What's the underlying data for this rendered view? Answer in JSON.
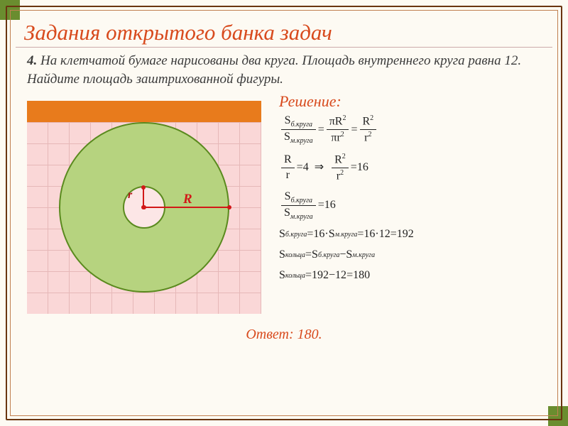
{
  "title": "Задания открытого банка задач",
  "problem": {
    "number": "4.",
    "text": "На клетчатой бумаге нарисованы два круга. Площадь внутреннего круга равна 12. Найдите площадь заштрихованной фигуры."
  },
  "solution_label": "Решение:",
  "answer_label": "Ответ:",
  "answer_value": "180.",
  "figure": {
    "grid_cell": 30,
    "grid_color": "#e6b8b8",
    "grid_fill": "#fad7d7",
    "top_row_color": "#e87b1c",
    "big_circle": {
      "radius_cells": 4,
      "fill": "#b6d37f",
      "stroke": "#5a8a1e"
    },
    "small_circle": {
      "radius_cells": 1,
      "fill": "#fce6e6",
      "stroke": "#5a8a1e"
    },
    "R_label": "R",
    "r_label": "r",
    "radius_color": "#d21818"
  },
  "formulas": {
    "line1": {
      "lhs_n": "S",
      "lhs_n_sub": "б.круга",
      "lhs_d": "S",
      "lhs_d_sub": "м.круга",
      "mid_n": "πR",
      "mid_d": "πr",
      "rhs_n": "R",
      "rhs_d": "r",
      "sup": "2"
    },
    "line2": {
      "lhs_n": "R",
      "lhs_d": "r",
      "eq1": "4",
      "rhs_n": "R",
      "rhs_d": "r",
      "sup": "2",
      "eq2": "16",
      "arrow": "⇒"
    },
    "line3": {
      "n": "S",
      "n_sub": "б.круга",
      "d": "S",
      "d_sub": "м.круга",
      "val": "16"
    },
    "line4": {
      "S": "S",
      "sub_b": "б.круга",
      "sub_m": "м.круга",
      "mult": "16·S",
      "calc": "16·12",
      "result": "192"
    },
    "line5": {
      "S": "S",
      "sub_ring": "кольца",
      "sub_b": "б.круга",
      "sub_m": "м.круга",
      "op": "−"
    },
    "line6": {
      "S": "S",
      "sub_ring": "кольца",
      "expr": "192−12",
      "result": "180"
    }
  },
  "colors": {
    "title": "#d84a1d",
    "frame": "#6a3510",
    "corner": "#6a8d2f",
    "background": "#fdfaf3"
  }
}
